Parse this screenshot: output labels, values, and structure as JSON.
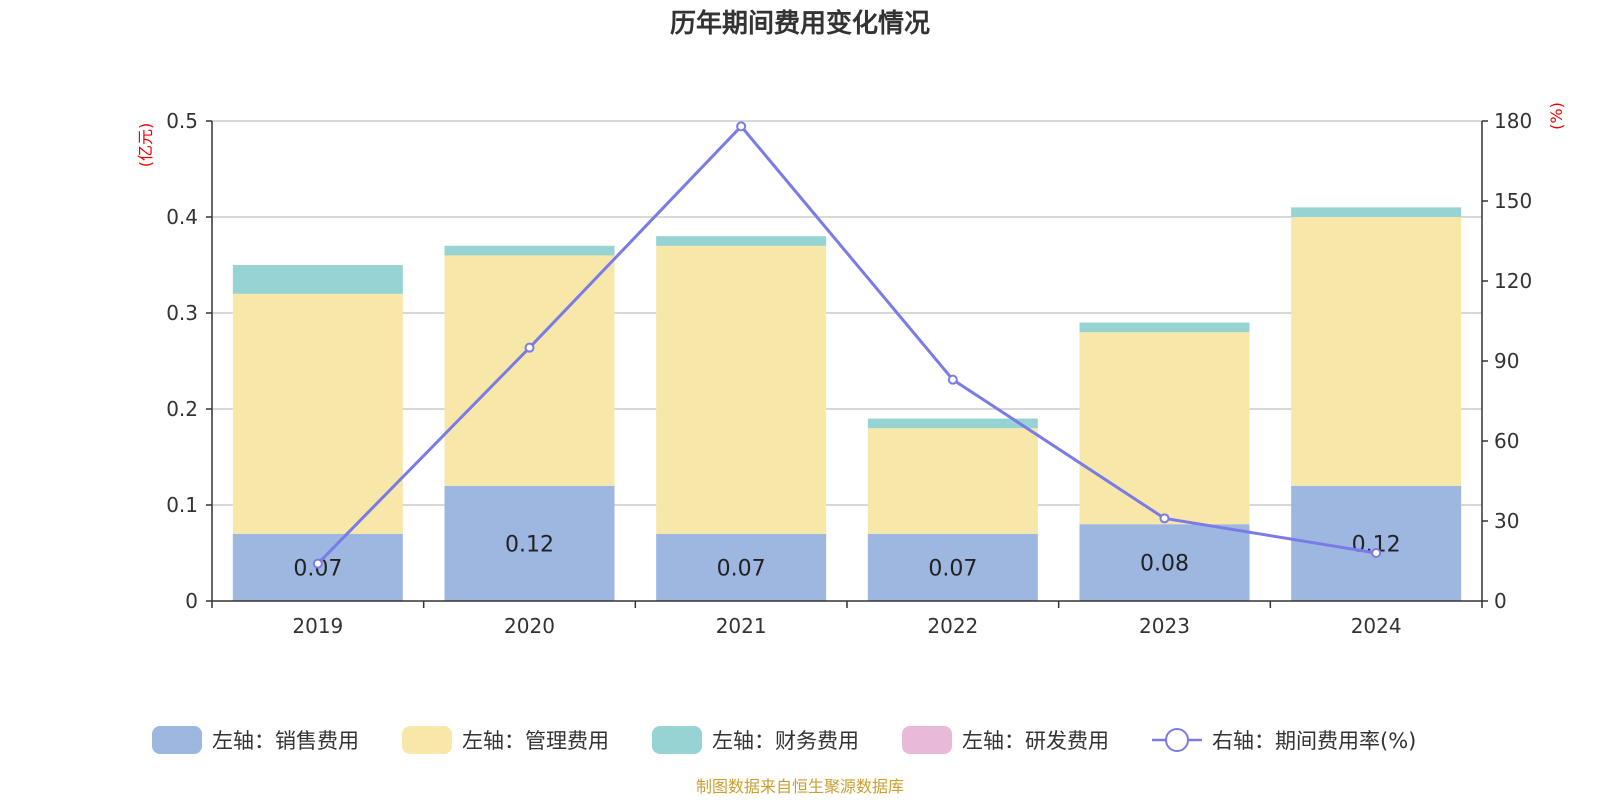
{
  "chart_data": {
    "type": "bar",
    "title": "历年期间费用变化情况",
    "categories": [
      "2019",
      "2020",
      "2021",
      "2022",
      "2023",
      "2024"
    ],
    "left_axis": {
      "unit": "(亿元)",
      "ylim": [
        0,
        0.5
      ],
      "ticks": [
        "0",
        "0.1",
        "0.2",
        "0.3",
        "0.4",
        "0.5"
      ],
      "tick_values": [
        0,
        0.1,
        0.2,
        0.3,
        0.4,
        0.5
      ]
    },
    "right_axis": {
      "unit": "(%)",
      "ylim": [
        0,
        180
      ],
      "ticks": [
        "0",
        "30",
        "60",
        "90",
        "120",
        "150",
        "180"
      ],
      "tick_values": [
        0,
        30,
        60,
        90,
        120,
        150,
        180
      ]
    },
    "series": [
      {
        "name": "左轴：销售费用",
        "axis": "left",
        "kind": "bar",
        "color": "#9db7e1",
        "values": [
          0.07,
          0.12,
          0.07,
          0.07,
          0.08,
          0.12
        ],
        "labels": [
          "0.07",
          "0.12",
          "0.07",
          "0.07",
          "0.08",
          "0.12"
        ]
      },
      {
        "name": "左轴：管理费用",
        "axis": "left",
        "kind": "bar",
        "color": "#f7e7a8",
        "values": [
          0.25,
          0.24,
          0.3,
          0.11,
          0.2,
          0.28
        ]
      },
      {
        "name": "左轴：财务费用",
        "axis": "left",
        "kind": "bar",
        "color": "#96d3d2",
        "values": [
          0.03,
          0.01,
          0.01,
          0.01,
          0.01,
          0.01
        ]
      },
      {
        "name": "左轴：研发费用",
        "axis": "left",
        "kind": "bar",
        "color": "#e8b9d9",
        "values": [
          0,
          0,
          0,
          0,
          0,
          0
        ]
      },
      {
        "name": "右轴：期间费用率(%)",
        "axis": "right",
        "kind": "line",
        "color": "#7b7be8",
        "values": [
          14,
          95,
          178,
          83,
          31,
          18
        ]
      }
    ],
    "grid": true,
    "legend_position": "bottom"
  },
  "source": "制图数据来自恒生聚源数据库"
}
